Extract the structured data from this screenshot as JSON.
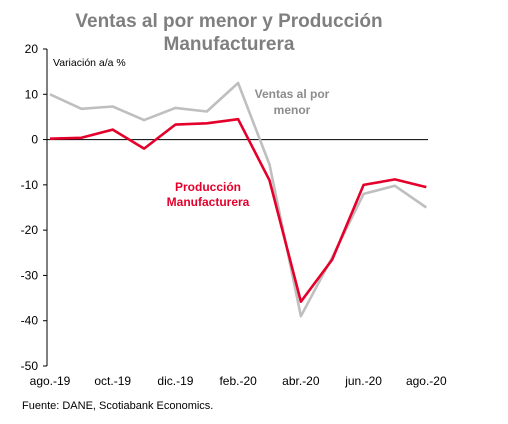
{
  "chart_data": {
    "type": "line",
    "title_lines": [
      "Ventas al por menor y Producción",
      "Manufacturera"
    ],
    "ylabel": "Variación a/a %",
    "ylim": [
      -50,
      20
    ],
    "yticks": [
      -50,
      -40,
      -30,
      -20,
      -10,
      0,
      10,
      20
    ],
    "x": [
      "ago.-19",
      "sep.-19",
      "oct.-19",
      "nov.-19",
      "dic.-19",
      "ene.-20",
      "feb.-20",
      "mar.-20",
      "abr.-20",
      "may.-20",
      "jun.-20",
      "jul.-20",
      "ago.-20"
    ],
    "xtick_labels": [
      "ago.-19",
      "oct.-19",
      "dic.-19",
      "feb.-20",
      "abr.-20",
      "jun.-20",
      "ago.-20"
    ],
    "series": [
      {
        "name": "Ventas al por menor",
        "label_lines": [
          "Ventas al por",
          "menor"
        ],
        "color": "#bfbfbf",
        "values": [
          10.0,
          6.8,
          7.3,
          4.3,
          7.0,
          6.2,
          12.5,
          -5.5,
          -39.0,
          -26.0,
          -12.0,
          -10.2,
          -15.0
        ]
      },
      {
        "name": "Producción Manufacturera",
        "label_lines": [
          "Producción",
          "Manufacturera"
        ],
        "color": "#e4002b",
        "values": [
          0.2,
          0.4,
          2.2,
          -2.0,
          3.3,
          3.6,
          4.5,
          -9.0,
          -35.8,
          -26.5,
          -10.0,
          -8.8,
          -10.5
        ]
      }
    ],
    "source": "Fuente: DANE, Scotiabank Economics."
  }
}
